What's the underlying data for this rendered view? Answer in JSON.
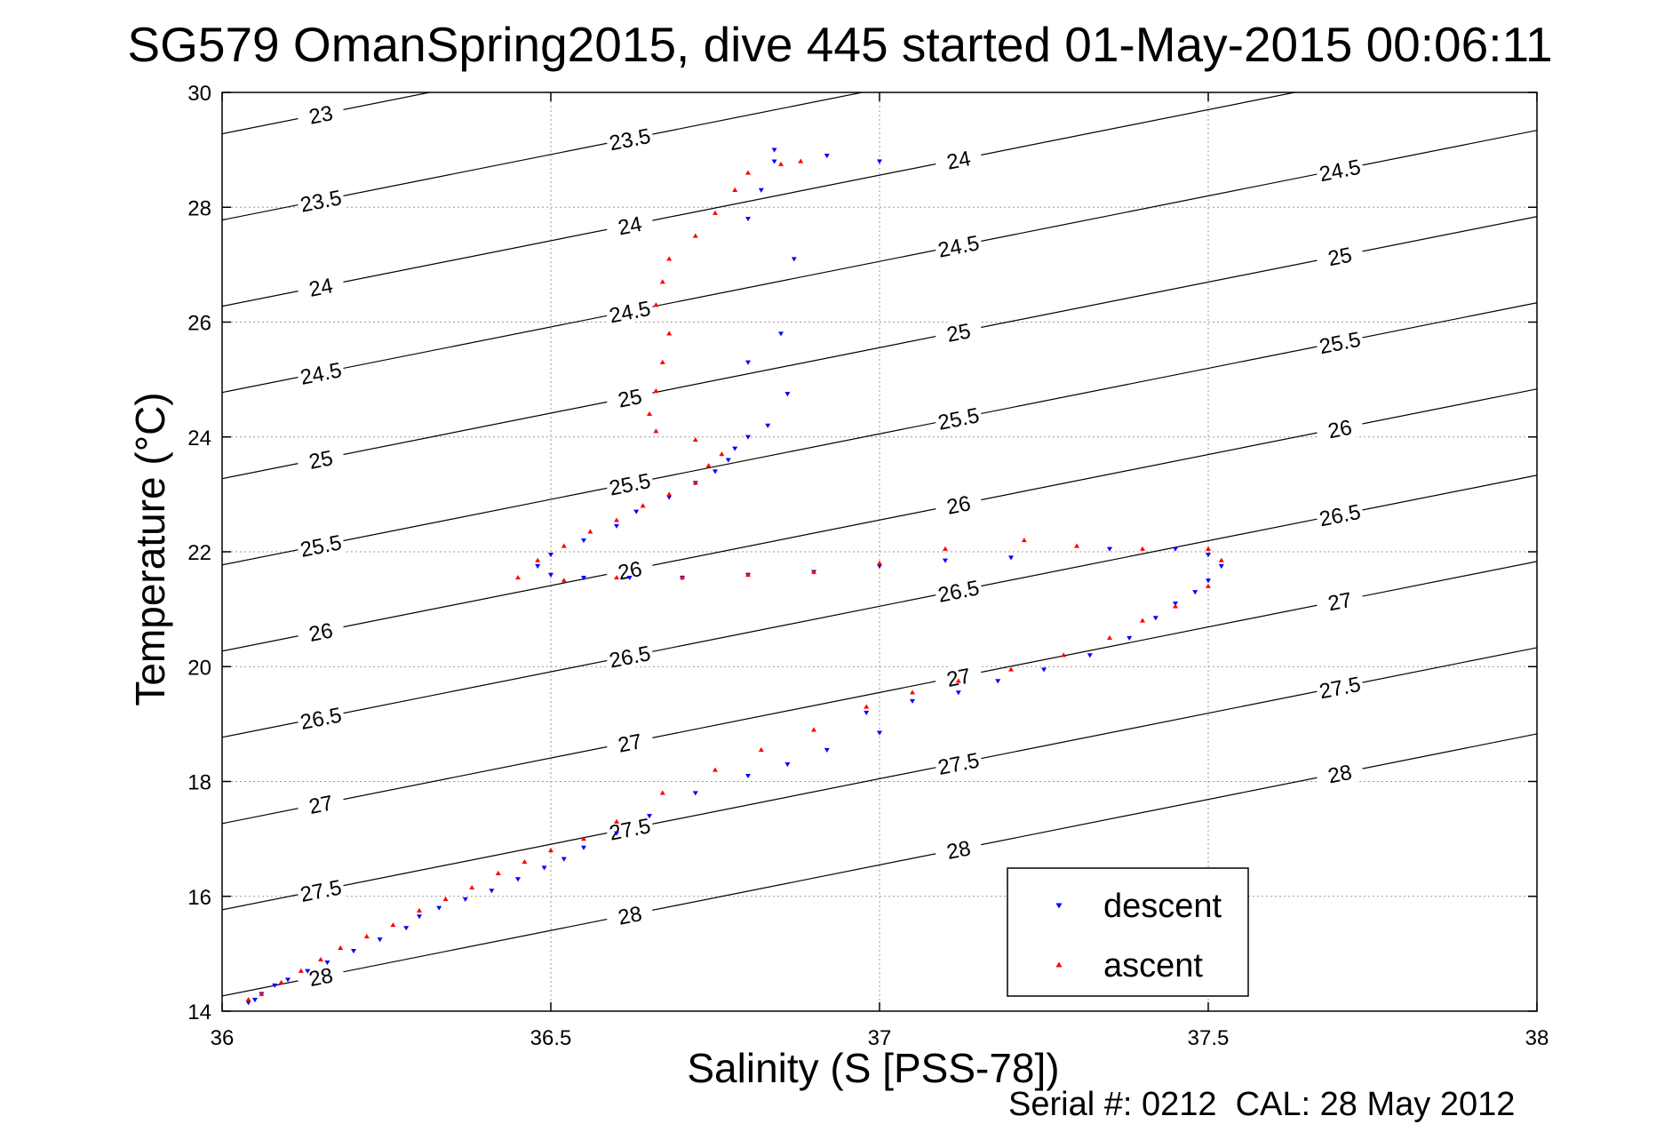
{
  "chart_data": {
    "type": "scatter",
    "title": "SG579 OmanSpring2015, dive 445 started 01-May-2015 00:06:11",
    "xlabel": "Salinity (S [PSS-78])",
    "ylabel": "Temperature (°C)",
    "xlim": [
      36,
      38
    ],
    "ylim": [
      14,
      30
    ],
    "x_ticks": [
      "36",
      "36.5",
      "37",
      "37.5",
      "38"
    ],
    "y_ticks": [
      "14",
      "16",
      "18",
      "20",
      "22",
      "24",
      "26",
      "28",
      "30"
    ],
    "grid": true,
    "legend": {
      "position": "bottom-right",
      "entries": [
        "descent",
        "ascent"
      ]
    },
    "density_contours": [
      23,
      23.5,
      24,
      24.5,
      25,
      25.5,
      26,
      26.5,
      27,
      27.5,
      28
    ],
    "series": [
      {
        "name": "descent",
        "color": "#0000ff",
        "marker": "triangle-down",
        "points": [
          [
            36.04,
            14.15
          ],
          [
            36.05,
            14.2
          ],
          [
            36.06,
            14.3
          ],
          [
            36.08,
            14.45
          ],
          [
            36.1,
            14.55
          ],
          [
            36.13,
            14.7
          ],
          [
            36.16,
            14.85
          ],
          [
            36.2,
            15.05
          ],
          [
            36.24,
            15.25
          ],
          [
            36.28,
            15.45
          ],
          [
            36.3,
            15.65
          ],
          [
            36.33,
            15.8
          ],
          [
            36.37,
            15.95
          ],
          [
            36.41,
            16.1
          ],
          [
            36.45,
            16.3
          ],
          [
            36.49,
            16.5
          ],
          [
            36.52,
            16.65
          ],
          [
            36.55,
            16.85
          ],
          [
            36.6,
            17.1
          ],
          [
            36.65,
            17.4
          ],
          [
            36.72,
            17.8
          ],
          [
            36.8,
            18.1
          ],
          [
            36.86,
            18.3
          ],
          [
            36.92,
            18.55
          ],
          [
            37.0,
            18.85
          ],
          [
            36.98,
            19.2
          ],
          [
            37.05,
            19.4
          ],
          [
            37.12,
            19.55
          ],
          [
            37.18,
            19.75
          ],
          [
            37.25,
            19.95
          ],
          [
            37.32,
            20.2
          ],
          [
            37.38,
            20.5
          ],
          [
            37.42,
            20.85
          ],
          [
            37.45,
            21.1
          ],
          [
            37.48,
            21.3
          ],
          [
            37.5,
            21.5
          ],
          [
            37.52,
            21.75
          ],
          [
            37.5,
            21.95
          ],
          [
            37.45,
            22.05
          ],
          [
            37.35,
            22.05
          ],
          [
            37.2,
            21.9
          ],
          [
            37.1,
            21.85
          ],
          [
            37.0,
            21.75
          ],
          [
            36.9,
            21.65
          ],
          [
            36.8,
            21.6
          ],
          [
            36.7,
            21.55
          ],
          [
            36.62,
            21.55
          ],
          [
            36.55,
            21.55
          ],
          [
            36.5,
            21.6
          ],
          [
            36.48,
            21.75
          ],
          [
            36.5,
            21.95
          ],
          [
            36.55,
            22.2
          ],
          [
            36.6,
            22.45
          ],
          [
            36.63,
            22.7
          ],
          [
            36.68,
            22.95
          ],
          [
            36.72,
            23.2
          ],
          [
            36.75,
            23.4
          ],
          [
            36.77,
            23.6
          ],
          [
            36.78,
            23.8
          ],
          [
            36.8,
            24.0
          ],
          [
            36.83,
            24.2
          ],
          [
            36.86,
            24.75
          ],
          [
            36.8,
            25.3
          ],
          [
            36.85,
            25.8
          ],
          [
            36.87,
            27.1
          ],
          [
            36.8,
            27.8
          ],
          [
            36.82,
            28.3
          ],
          [
            36.84,
            28.8
          ],
          [
            36.84,
            29.0
          ],
          [
            36.92,
            28.9
          ],
          [
            37.0,
            28.8
          ]
        ]
      },
      {
        "name": "ascent",
        "color": "#ff0000",
        "marker": "triangle-up",
        "points": [
          [
            36.04,
            14.2
          ],
          [
            36.06,
            14.3
          ],
          [
            36.09,
            14.5
          ],
          [
            36.12,
            14.7
          ],
          [
            36.15,
            14.9
          ],
          [
            36.18,
            15.1
          ],
          [
            36.22,
            15.3
          ],
          [
            36.26,
            15.5
          ],
          [
            36.3,
            15.75
          ],
          [
            36.34,
            15.95
          ],
          [
            36.38,
            16.15
          ],
          [
            36.42,
            16.4
          ],
          [
            36.46,
            16.6
          ],
          [
            36.5,
            16.8
          ],
          [
            36.55,
            17.0
          ],
          [
            36.6,
            17.3
          ],
          [
            36.67,
            17.8
          ],
          [
            36.75,
            18.2
          ],
          [
            36.82,
            18.55
          ],
          [
            36.9,
            18.9
          ],
          [
            36.98,
            19.3
          ],
          [
            37.05,
            19.55
          ],
          [
            37.12,
            19.75
          ],
          [
            37.2,
            19.95
          ],
          [
            37.28,
            20.2
          ],
          [
            37.35,
            20.5
          ],
          [
            37.4,
            20.8
          ],
          [
            37.45,
            21.05
          ],
          [
            37.5,
            21.4
          ],
          [
            37.52,
            21.85
          ],
          [
            37.5,
            22.05
          ],
          [
            37.4,
            22.05
          ],
          [
            37.3,
            22.1
          ],
          [
            37.22,
            22.2
          ],
          [
            37.1,
            22.05
          ],
          [
            37.0,
            21.8
          ],
          [
            36.9,
            21.65
          ],
          [
            36.8,
            21.6
          ],
          [
            36.7,
            21.55
          ],
          [
            36.6,
            21.55
          ],
          [
            36.52,
            21.5
          ],
          [
            36.45,
            21.55
          ],
          [
            36.48,
            21.85
          ],
          [
            36.52,
            22.1
          ],
          [
            36.56,
            22.35
          ],
          [
            36.6,
            22.55
          ],
          [
            36.64,
            22.8
          ],
          [
            36.68,
            23.0
          ],
          [
            36.72,
            23.2
          ],
          [
            36.74,
            23.5
          ],
          [
            36.76,
            23.7
          ],
          [
            36.72,
            23.95
          ],
          [
            36.66,
            24.1
          ],
          [
            36.65,
            24.4
          ],
          [
            36.66,
            24.8
          ],
          [
            36.67,
            25.3
          ],
          [
            36.68,
            25.8
          ],
          [
            36.66,
            26.3
          ],
          [
            36.67,
            26.7
          ],
          [
            36.68,
            27.1
          ],
          [
            36.72,
            27.5
          ],
          [
            36.75,
            27.9
          ],
          [
            36.78,
            28.3
          ],
          [
            36.8,
            28.6
          ],
          [
            36.85,
            28.75
          ],
          [
            36.88,
            28.8
          ]
        ]
      }
    ]
  },
  "footer": {
    "text": "Serial #: 0212  CAL: 28 May 2012"
  }
}
